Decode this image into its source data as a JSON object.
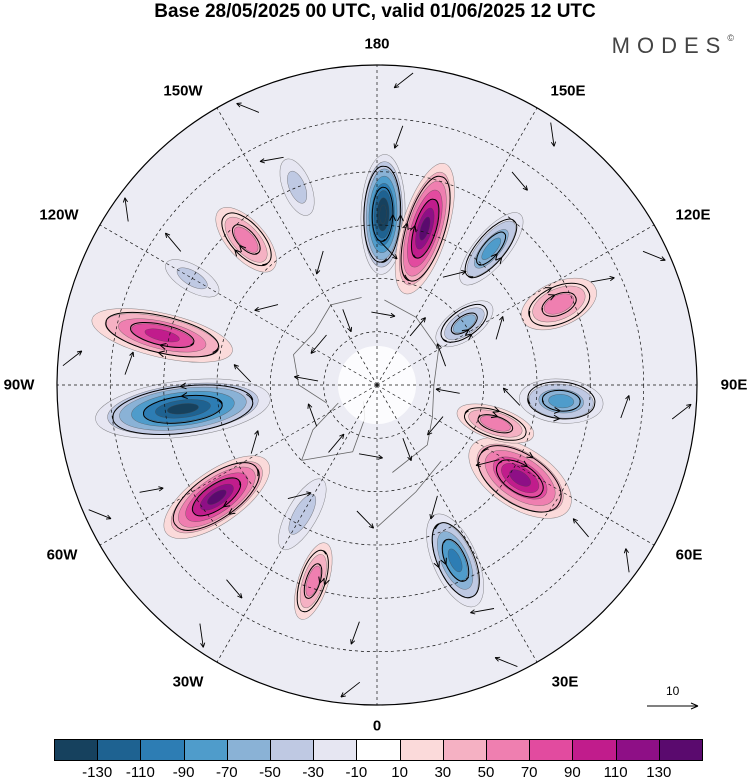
{
  "title": "Base 28/05/2025 00 UTC, valid 01/06/2025 12 UTC",
  "brand": "MODES",
  "brand_mark": "©",
  "longitude_labels": {
    "n180": "180",
    "e150": "150E",
    "e120": "120E",
    "e90": "90E",
    "e60": "60E",
    "e30": "30E",
    "s0": "0",
    "w30": "30W",
    "w60": "60W",
    "w90": "90W",
    "w120": "120W",
    "w150": "150W"
  },
  "vector_scale": {
    "label": "10"
  },
  "colorbar": {
    "colors": [
      "#16415e",
      "#1e6291",
      "#2d7db4",
      "#4f9ccb",
      "#8ab2d6",
      "#bfc9e3",
      "#e6e6f2",
      "#ffffff",
      "#fbdada",
      "#f5b1c3",
      "#ef7fb0",
      "#e24b9f",
      "#c11c8c",
      "#8e0f86",
      "#5a0a6e"
    ],
    "tick_labels": [
      "-130",
      "-110",
      "-90",
      "-70",
      "-50",
      "-30",
      "-10",
      "10",
      "30",
      "50",
      "70",
      "90",
      "110",
      "130"
    ]
  },
  "anomalies": [
    {
      "name": "anomaly-low-180",
      "lon": 178,
      "colat": 48,
      "value": -135,
      "rx": 60,
      "ry": 22
    },
    {
      "name": "anomaly-high-165e",
      "lon": 163,
      "colat": 46,
      "value": 125,
      "rx": 68,
      "ry": 23
    },
    {
      "name": "anomaly-low-140e",
      "lon": 140,
      "colat": 50,
      "value": -55,
      "rx": 45,
      "ry": 17
    },
    {
      "name": "anomaly-high-115e",
      "lon": 114,
      "colat": 56,
      "value": 45,
      "rx": 40,
      "ry": 22
    },
    {
      "name": "anomaly-low-125e",
      "lon": 125,
      "colat": 30,
      "value": -50,
      "rx": 33,
      "ry": 16
    },
    {
      "name": "anomaly-low-90e",
      "lon": 85,
      "colat": 52,
      "value": -65,
      "rx": 42,
      "ry": 22
    },
    {
      "name": "anomaly-high-60e",
      "lon": 57,
      "colat": 48,
      "value": 100,
      "rx": 58,
      "ry": 30
    },
    {
      "name": "anomaly-high-70e-tail",
      "lon": 72,
      "colat": 35,
      "value": 35,
      "rx": 40,
      "ry": 16
    },
    {
      "name": "anomaly-low-25e",
      "lon": 24,
      "colat": 54,
      "value": -80,
      "rx": 50,
      "ry": 22
    },
    {
      "name": "anomaly-high-20w",
      "lon": -18,
      "colat": 58,
      "value": 40,
      "rx": 40,
      "ry": 15
    },
    {
      "name": "anomaly-low-30w",
      "lon": -30,
      "colat": 42,
      "value": -20,
      "rx": 40,
      "ry": 15
    },
    {
      "name": "anomaly-high-55w",
      "lon": -55,
      "colat": 55,
      "value": 115,
      "rx": 62,
      "ry": 26
    },
    {
      "name": "anomaly-low-85w",
      "lon": -83,
      "colat": 55,
      "value": -130,
      "rx": 88,
      "ry": 28
    },
    {
      "name": "anomaly-high-105w",
      "lon": -103,
      "colat": 62,
      "value": 75,
      "rx": 72,
      "ry": 22
    },
    {
      "name": "anomaly-high-140w",
      "lon": -138,
      "colat": 55,
      "value": 40,
      "rx": 40,
      "ry": 19
    },
    {
      "name": "anomaly-low-160w",
      "lon": -158,
      "colat": 60,
      "value": -20,
      "rx": 30,
      "ry": 14
    },
    {
      "name": "anomaly-low-120w",
      "lon": -120,
      "colat": 60,
      "value": -15,
      "rx": 30,
      "ry": 13
    }
  ]
}
